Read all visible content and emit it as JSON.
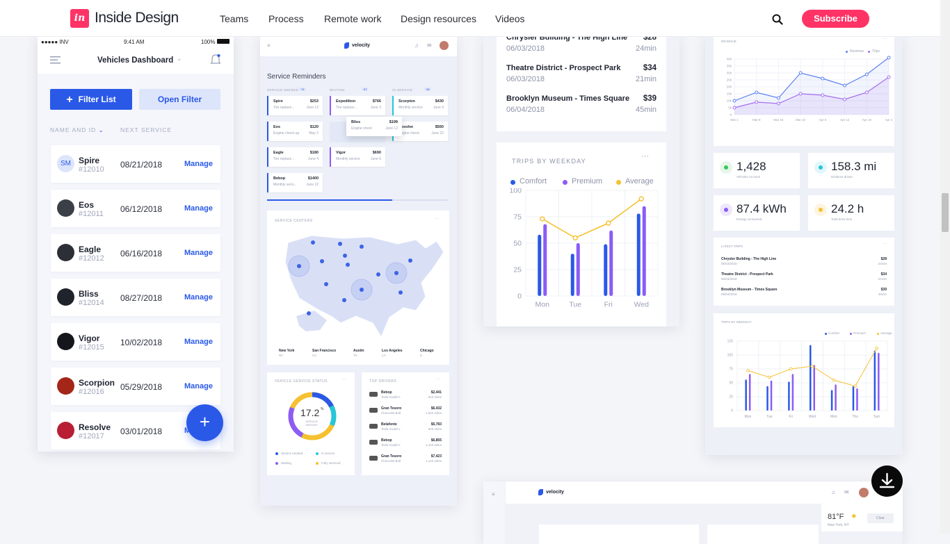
{
  "header": {
    "logo_mark": "in",
    "logo_text": "Inside Design",
    "nav": [
      "Teams",
      "Process",
      "Remote work",
      "Design resources",
      "Videos"
    ],
    "subscribe": "Subscribe",
    "search_icon": "search-icon"
  },
  "mobile": {
    "status": {
      "carrier": "●●●●● INV",
      "time": "9:41 AM",
      "battery": "100%"
    },
    "title": "Vehicles Dashboard",
    "filter_list": "Filter List",
    "open_filter": "Open Filter",
    "col_name": "NAME AND ID",
    "col_next": "NEXT SERVICE",
    "manage": "Manage",
    "fab": "+",
    "rows": [
      {
        "initials": "SM",
        "name": "Spire",
        "id": "#12010",
        "date": "08/21/2018",
        "color": "#dde5fb"
      },
      {
        "initials": "",
        "name": "Eos",
        "id": "#12011",
        "date": "06/12/2018",
        "color": "#3b4048"
      },
      {
        "initials": "",
        "name": "Eagle",
        "id": "#12012",
        "date": "06/16/2018",
        "color": "#2d2f36"
      },
      {
        "initials": "",
        "name": "Bliss",
        "id": "#12014",
        "date": "08/27/2018",
        "color": "#1f232b"
      },
      {
        "initials": "",
        "name": "Vigor",
        "id": "#12015",
        "date": "10/02/2018",
        "color": "#15161b"
      },
      {
        "initials": "",
        "name": "Scorpion",
        "id": "#12016",
        "date": "05/29/2018",
        "color": "#a42618"
      },
      {
        "initials": "",
        "name": "Resolve",
        "id": "#12017",
        "date": "03/01/2018",
        "color": "#b81f35"
      }
    ]
  },
  "velocity": {
    "brand": "velocity",
    "service_title": "Service Reminders",
    "cols": [
      {
        "label": "SERVICE NEEDED",
        "count": "74"
      },
      {
        "label": "WAITING",
        "count": "87"
      },
      {
        "label": "IN SERVICE",
        "count": "36"
      }
    ],
    "cards_col1": [
      {
        "a": "Spire",
        "b": "Tire replace...",
        "c": "$253",
        "d": "June 12"
      },
      {
        "a": "Eos",
        "b": "Engine check-up",
        "c": "$120",
        "d": "May 2"
      },
      {
        "a": "Eagle",
        "b": "Tire replace...",
        "c": "$180",
        "d": "June 4"
      },
      {
        "a": "Bebop",
        "b": "Monthly servi...",
        "c": "$1400",
        "d": "June 12"
      }
    ],
    "cards_col2": [
      {
        "a": "Expedition",
        "b": "Tire replace...",
        "c": "$766",
        "d": "June 3"
      },
      {
        "a": "Bliss",
        "b": "Engine check",
        "c": "$199",
        "d": "June 12"
      },
      {
        "a": "Vigor",
        "b": "Monthly service",
        "c": "$690",
        "d": "June 6"
      }
    ],
    "cards_col3": [
      {
        "a": "Scorpion",
        "b": "Monthly service",
        "c": "$430",
        "d": "June 4"
      },
      {
        "a": "Resolve",
        "b": "Engine check",
        "c": "$560",
        "d": "June 22"
      }
    ],
    "service_centers": "SERVICE CENTERS",
    "cities": [
      {
        "name": "New York",
        "st": "NY"
      },
      {
        "name": "San Francisco",
        "st": "CA"
      },
      {
        "name": "Austin",
        "st": "TX"
      },
      {
        "name": "Los Angeles",
        "st": "LA"
      },
      {
        "name": "Chicago",
        "st": "IL"
      }
    ],
    "status_title": "VEHICLE SERVICE STATUS",
    "donut_value": "17.2",
    "donut_unit": "%",
    "donut_label": "SERVICE NEEDED",
    "donut_legend": [
      {
        "label": "Service needed",
        "color": "#2a59e8"
      },
      {
        "label": "In service",
        "color": "#26c6da"
      },
      {
        "label": "Waiting",
        "color": "#8b5cf6"
      },
      {
        "label": "Fully serviced",
        "color": "#f5c130"
      }
    ],
    "drivers_title": "TOP DRIVERS",
    "drivers": [
      {
        "name": "Bebop",
        "car": "Tesla model s",
        "amt": "$2,441",
        "miles": "512 miles"
      },
      {
        "name": "Gran Tesoro",
        "car": "Chevrolet Bolt",
        "amt": "$6,432",
        "miles": "1,522 miles"
      },
      {
        "name": "Belafonte",
        "car": "Tesla model x",
        "amt": "$5,783",
        "miles": "925 miles"
      },
      {
        "name": "Bebop",
        "car": "Tesla model s",
        "amt": "$6,855",
        "miles": "1,443 miles"
      },
      {
        "name": "Gran Tesoro",
        "car": "Chevrolet Bolt",
        "amt": "$7,423",
        "miles": "1,122 miles"
      }
    ]
  },
  "trips": {
    "items": [
      {
        "name": "Chrysler Building - The High Line",
        "date": "06/03/2018",
        "price": "$28",
        "dur": "24min"
      },
      {
        "name": "Theatre District - Prospect Park",
        "date": "06/03/2018",
        "price": "$34",
        "dur": "21min"
      },
      {
        "name": "Brooklyn Museum - Times Square",
        "date": "06/04/2018",
        "price": "$39",
        "dur": "45min"
      }
    ],
    "weekday_title": "TRIPS BY WEEKDAY",
    "more": "···"
  },
  "chart_data": [
    {
      "type": "bar",
      "title": "TRIPS BY WEEKDAY",
      "categories": [
        "Mon",
        "Tue",
        "Fri",
        "Wed"
      ],
      "series": [
        {
          "name": "Comfort",
          "color": "#2a59e8",
          "values": [
            58,
            40,
            49,
            78
          ]
        },
        {
          "name": "Premium",
          "color": "#8b5cf6",
          "values": [
            68,
            50,
            62,
            85
          ]
        },
        {
          "name": "Average",
          "color": "#f5c130",
          "type": "line",
          "values": [
            73,
            55,
            69,
            92
          ]
        }
      ],
      "ylim": [
        0,
        100
      ],
      "yticks": [
        0,
        25,
        50,
        75,
        100
      ],
      "legend": "top"
    },
    {
      "type": "line",
      "title": "REVENUE",
      "categories": [
        "Mar 1",
        "Mar 8",
        "Mar 15",
        "Mar 22",
        "Apr 5",
        "Apr 12",
        "Apr 19",
        "Apr 2"
      ],
      "series": [
        {
          "name": "Revenue",
          "color": "#5b7ff0",
          "values": [
            10,
            16,
            12,
            30,
            26,
            21,
            29,
            41
          ]
        },
        {
          "name": "Trips",
          "color": "#a66df0",
          "values": [
            5,
            9,
            8,
            15,
            14,
            11,
            16,
            27
          ]
        }
      ],
      "ylim": [
        0,
        40
      ],
      "yticks": [
        "0",
        "5k",
        "10k",
        "15k",
        "20k",
        "25k",
        "30k",
        "35k",
        "40k"
      ],
      "legend": "top-right"
    },
    {
      "type": "bar",
      "title": "TRIPS BY WEEKDAY",
      "categories": [
        "Mon",
        "Tue",
        "Fri",
        "Wed",
        "Mon",
        "Thu",
        "Sun"
      ],
      "series": [
        {
          "name": "Comfort",
          "color": "#2a59e8",
          "values": [
            56,
            44,
            52,
            118,
            37,
            44,
            108
          ]
        },
        {
          "name": "Premium",
          "color": "#8b5cf6",
          "values": [
            66,
            54,
            66,
            82,
            47,
            40,
            104
          ]
        },
        {
          "name": "Average",
          "color": "#f5c130",
          "type": "line",
          "values": [
            72,
            60,
            75,
            80,
            55,
            44,
            112
          ]
        }
      ],
      "ylim": [
        0,
        125
      ],
      "yticks": [
        0,
        25,
        50,
        75,
        100,
        125
      ],
      "legend": "top-right"
    }
  ],
  "right": {
    "revenue_label": "REVENUE",
    "legend_revenue": "Revenue",
    "legend_trips": "Trips",
    "stats": [
      {
        "value": "1,428",
        "label": "Vehicles on track",
        "color": "#e6f6ea",
        "dot": "#34c759"
      },
      {
        "value": "158.3 mi",
        "label": "Distance driven",
        "color": "#e2f7fb",
        "dot": "#26c6da"
      },
      {
        "value": "87.4 kWh",
        "label": "Energy consumed",
        "color": "#efe7fd",
        "dot": "#8b5cf6"
      },
      {
        "value": "24.2 h",
        "label": "Total drive time",
        "color": "#fdf4e0",
        "dot": "#f5c130"
      }
    ],
    "latest_trips": "LATEST TRIPS",
    "trips_by_weekday": "TRIPS BY WEEKDAY",
    "legend": [
      "Comfort",
      "Premium",
      "Average"
    ]
  },
  "bottom": {
    "brand": "velocity",
    "temp": "81°F",
    "loc": "New York, NY",
    "clear": "Clear"
  }
}
